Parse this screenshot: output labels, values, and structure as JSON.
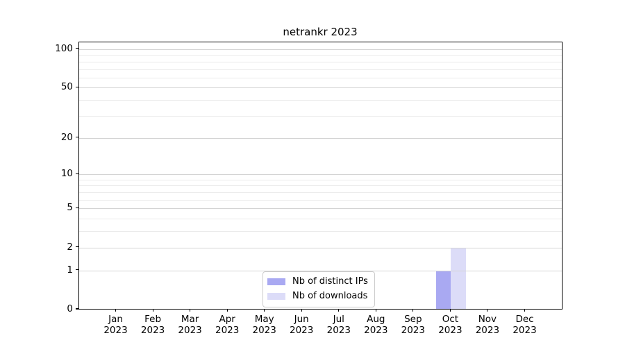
{
  "chart_data": {
    "type": "bar",
    "title": "netrankr 2023",
    "x_tick_year": "2023",
    "categories": [
      "Jan",
      "Feb",
      "Mar",
      "Apr",
      "May",
      "Jun",
      "Jul",
      "Aug",
      "Sep",
      "Oct",
      "Nov",
      "Dec"
    ],
    "series": [
      {
        "name": "Nb of distinct IPs",
        "color": "#a9a9f2",
        "values": [
          0,
          0,
          0,
          0,
          0,
          0,
          0,
          0,
          0,
          1,
          0,
          0
        ]
      },
      {
        "name": "Nb of downloads",
        "color": "#dcdcf8",
        "values": [
          0,
          0,
          0,
          0,
          0,
          0,
          0,
          0,
          0,
          2,
          0,
          0
        ]
      }
    ],
    "yscale": "log1p",
    "ylim": [
      0,
      113
    ],
    "y_ticks": [
      0,
      1,
      2,
      5,
      10,
      20,
      50,
      100
    ],
    "y_minor_ticks": [
      3,
      4,
      6,
      7,
      8,
      9,
      30,
      40,
      60,
      70,
      80,
      90
    ],
    "xlabel": "",
    "ylabel": "",
    "grid": true,
    "legend_position": "bottom-center"
  },
  "colors": {
    "major_grid": "#d4d4d4",
    "minor_grid": "#ebebeb",
    "axis": "#000000",
    "background": "#ffffff",
    "legend_border": "#cccccc"
  }
}
